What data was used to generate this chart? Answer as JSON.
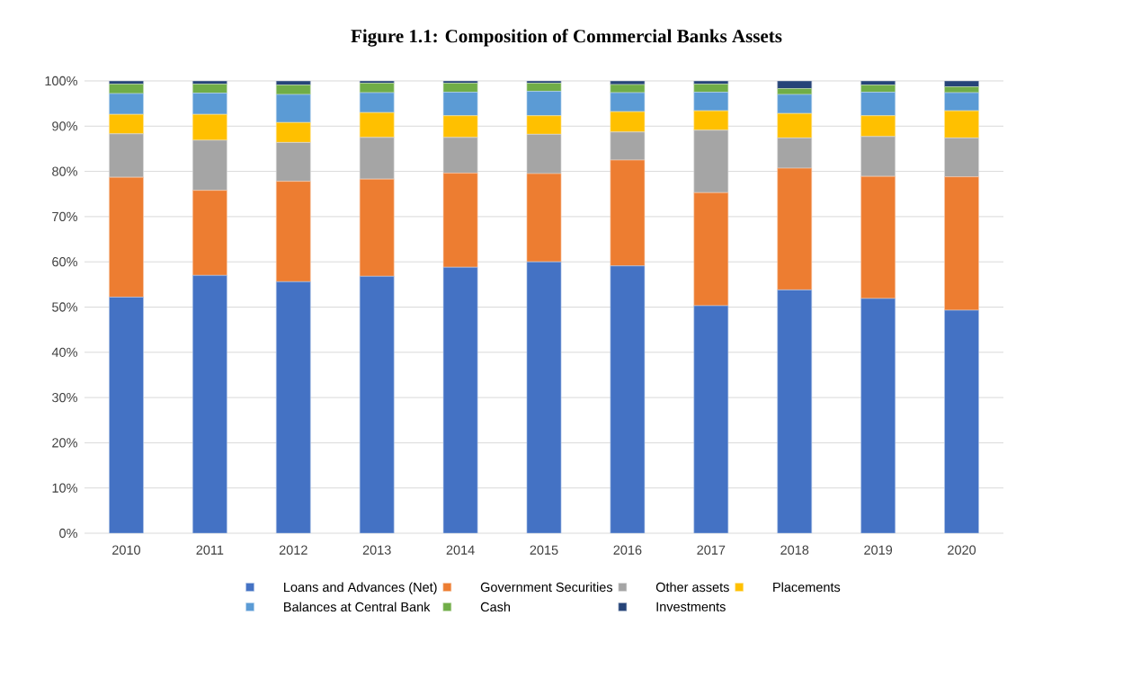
{
  "chart_data": {
    "type": "bar",
    "title": "Figure 1.1: Composition of Commercial Banks Assets",
    "stacked": true,
    "grid": "y",
    "legend": "bottom",
    "categories": [
      "2010",
      "2011",
      "2012",
      "2013",
      "2014",
      "2015",
      "2016",
      "2017",
      "2018",
      "2019",
      "2020"
    ],
    "ylim": [
      0,
      100
    ],
    "yticks": [
      {
        "value": 0,
        "label": "0%"
      },
      {
        "value": 10,
        "label": "10%"
      },
      {
        "value": 20,
        "label": "20%"
      },
      {
        "value": 30,
        "label": "30%"
      },
      {
        "value": 40,
        "label": "40%"
      },
      {
        "value": 50,
        "label": "50%"
      },
      {
        "value": 60,
        "label": "60%"
      },
      {
        "value": 70,
        "label": "70%"
      },
      {
        "value": 80,
        "label": "80%"
      },
      {
        "value": 90,
        "label": "90%"
      },
      {
        "value": 100,
        "label": "100%"
      }
    ],
    "series": [
      {
        "name": "Loans and Advances (Net)",
        "color": "#4472c4",
        "values": [
          52.2,
          57.0,
          55.6,
          56.8,
          58.8,
          60.0,
          59.1,
          50.3,
          53.8,
          51.9,
          49.3
        ]
      },
      {
        "name": "Government Securities",
        "color": "#ed7d31",
        "values": [
          26.5,
          18.8,
          22.2,
          21.5,
          20.8,
          19.5,
          23.4,
          25.0,
          26.9,
          27.0,
          29.5
        ]
      },
      {
        "name": "Other assets",
        "color": "#a5a5a5",
        "values": [
          9.6,
          11.1,
          8.6,
          9.2,
          7.9,
          8.7,
          6.2,
          13.8,
          6.7,
          8.8,
          8.6
        ]
      },
      {
        "name": "Placements",
        "color": "#ffc000",
        "values": [
          4.3,
          5.7,
          4.4,
          5.5,
          4.8,
          4.1,
          4.5,
          4.3,
          5.4,
          4.6,
          6.0
        ]
      },
      {
        "name": "Balances at Central Bank",
        "color": "#5b9bd5",
        "values": [
          4.6,
          4.7,
          6.2,
          4.4,
          5.2,
          5.4,
          4.2,
          4.1,
          4.2,
          5.2,
          4.0
        ]
      },
      {
        "name": "Cash",
        "color": "#70ad47",
        "values": [
          2.1,
          2.0,
          2.1,
          2.1,
          2.0,
          1.8,
          1.8,
          1.8,
          1.3,
          1.6,
          1.3
        ]
      },
      {
        "name": "Investments",
        "color": "#264478",
        "values": [
          0.7,
          0.7,
          0.9,
          0.5,
          0.5,
          0.5,
          0.8,
          0.7,
          1.7,
          0.9,
          1.3
        ]
      }
    ]
  }
}
